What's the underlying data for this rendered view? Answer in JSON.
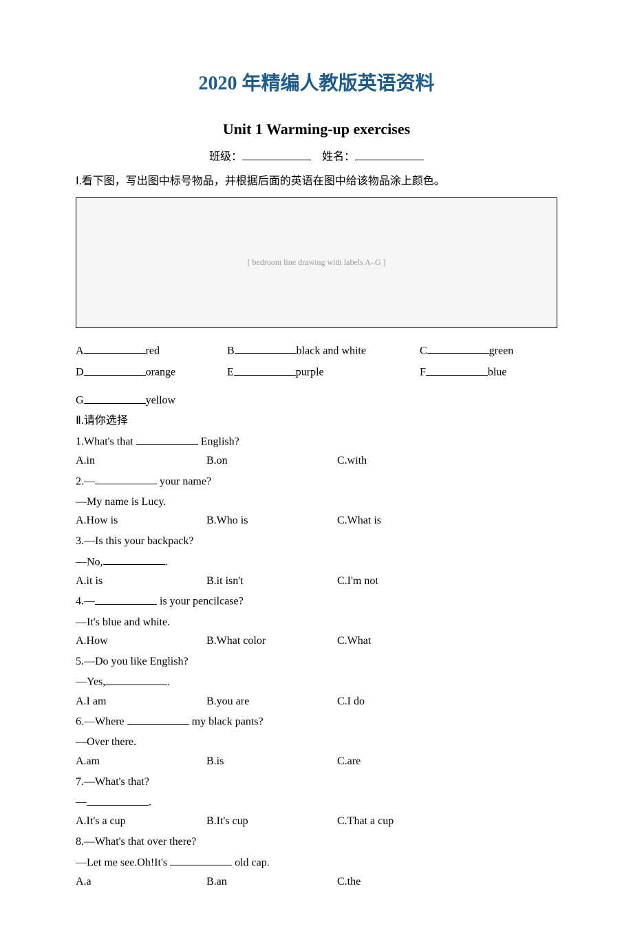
{
  "header": "2020 年精编人教版英语资料",
  "unit_title": "Unit 1 Warming-up exercises",
  "class_label": "班级：",
  "name_label": "姓名：",
  "instr1": "Ⅰ.看下图，写出图中标号物品，并根据后面的英语在图中给该物品涂上颜色。",
  "image_placeholder": "[ bedroom line drawing with labels A–G ]",
  "fills": {
    "row1": {
      "a": "A",
      "a_word": "red",
      "b": "B",
      "b_word": "black and white",
      "c": "C",
      "c_word": "green"
    },
    "row2": {
      "a": "D",
      "a_word": "orange",
      "b": "E",
      "b_word": "purple",
      "c": "F",
      "c_word": "blue"
    },
    "row3": {
      "a": "G",
      "a_word": "yellow"
    }
  },
  "instr2": "Ⅱ.请你选择",
  "q1": {
    "stem_pre": "1.What's that ",
    "stem_post": " English?",
    "a": "A.in",
    "b": "B.on",
    "c": "C.with"
  },
  "q2": {
    "stem_pre": "2.—",
    "stem_post": " your name?",
    "line2": "—My name is Lucy.",
    "a": "A.How is",
    "b": "B.Who is",
    "c": "C.What is"
  },
  "q3": {
    "line1": "3.—Is this your backpack?",
    "line2_pre": "—No,",
    "line2_post": ".",
    "a": "A.it is",
    "b": "B.it isn't",
    "c": "C.I'm not"
  },
  "q4": {
    "stem_pre": "4.—",
    "stem_post": " is your pencilcase?",
    "line2": "—It's blue and white.",
    "a": "A.How",
    "b": "B.What color",
    "c": "C.What"
  },
  "q5": {
    "line1": "5.—Do you like English?",
    "line2_pre": "—Yes,",
    "line2_post": ".",
    "a": "A.I am",
    "b": "B.you are",
    "c": "C.I do"
  },
  "q6": {
    "stem_pre": "6.—Where ",
    "stem_post": " my black pants?",
    "line2": "—Over there.",
    "a": "A.am",
    "b": "B.is",
    "c": "C.are"
  },
  "q7": {
    "line1": "7.—What's that?",
    "line2_pre": "—",
    "line2_post": ".",
    "a": "A.It's a cup",
    "b": "B.It's cup",
    "c": "C.That a cup"
  },
  "q8": {
    "line1": "8.—What's that over there?",
    "line2_pre": "—Let me see.Oh!It's ",
    "line2_post": " old cap.",
    "a": "A.a",
    "b": "B.an",
    "c": "C.the"
  }
}
